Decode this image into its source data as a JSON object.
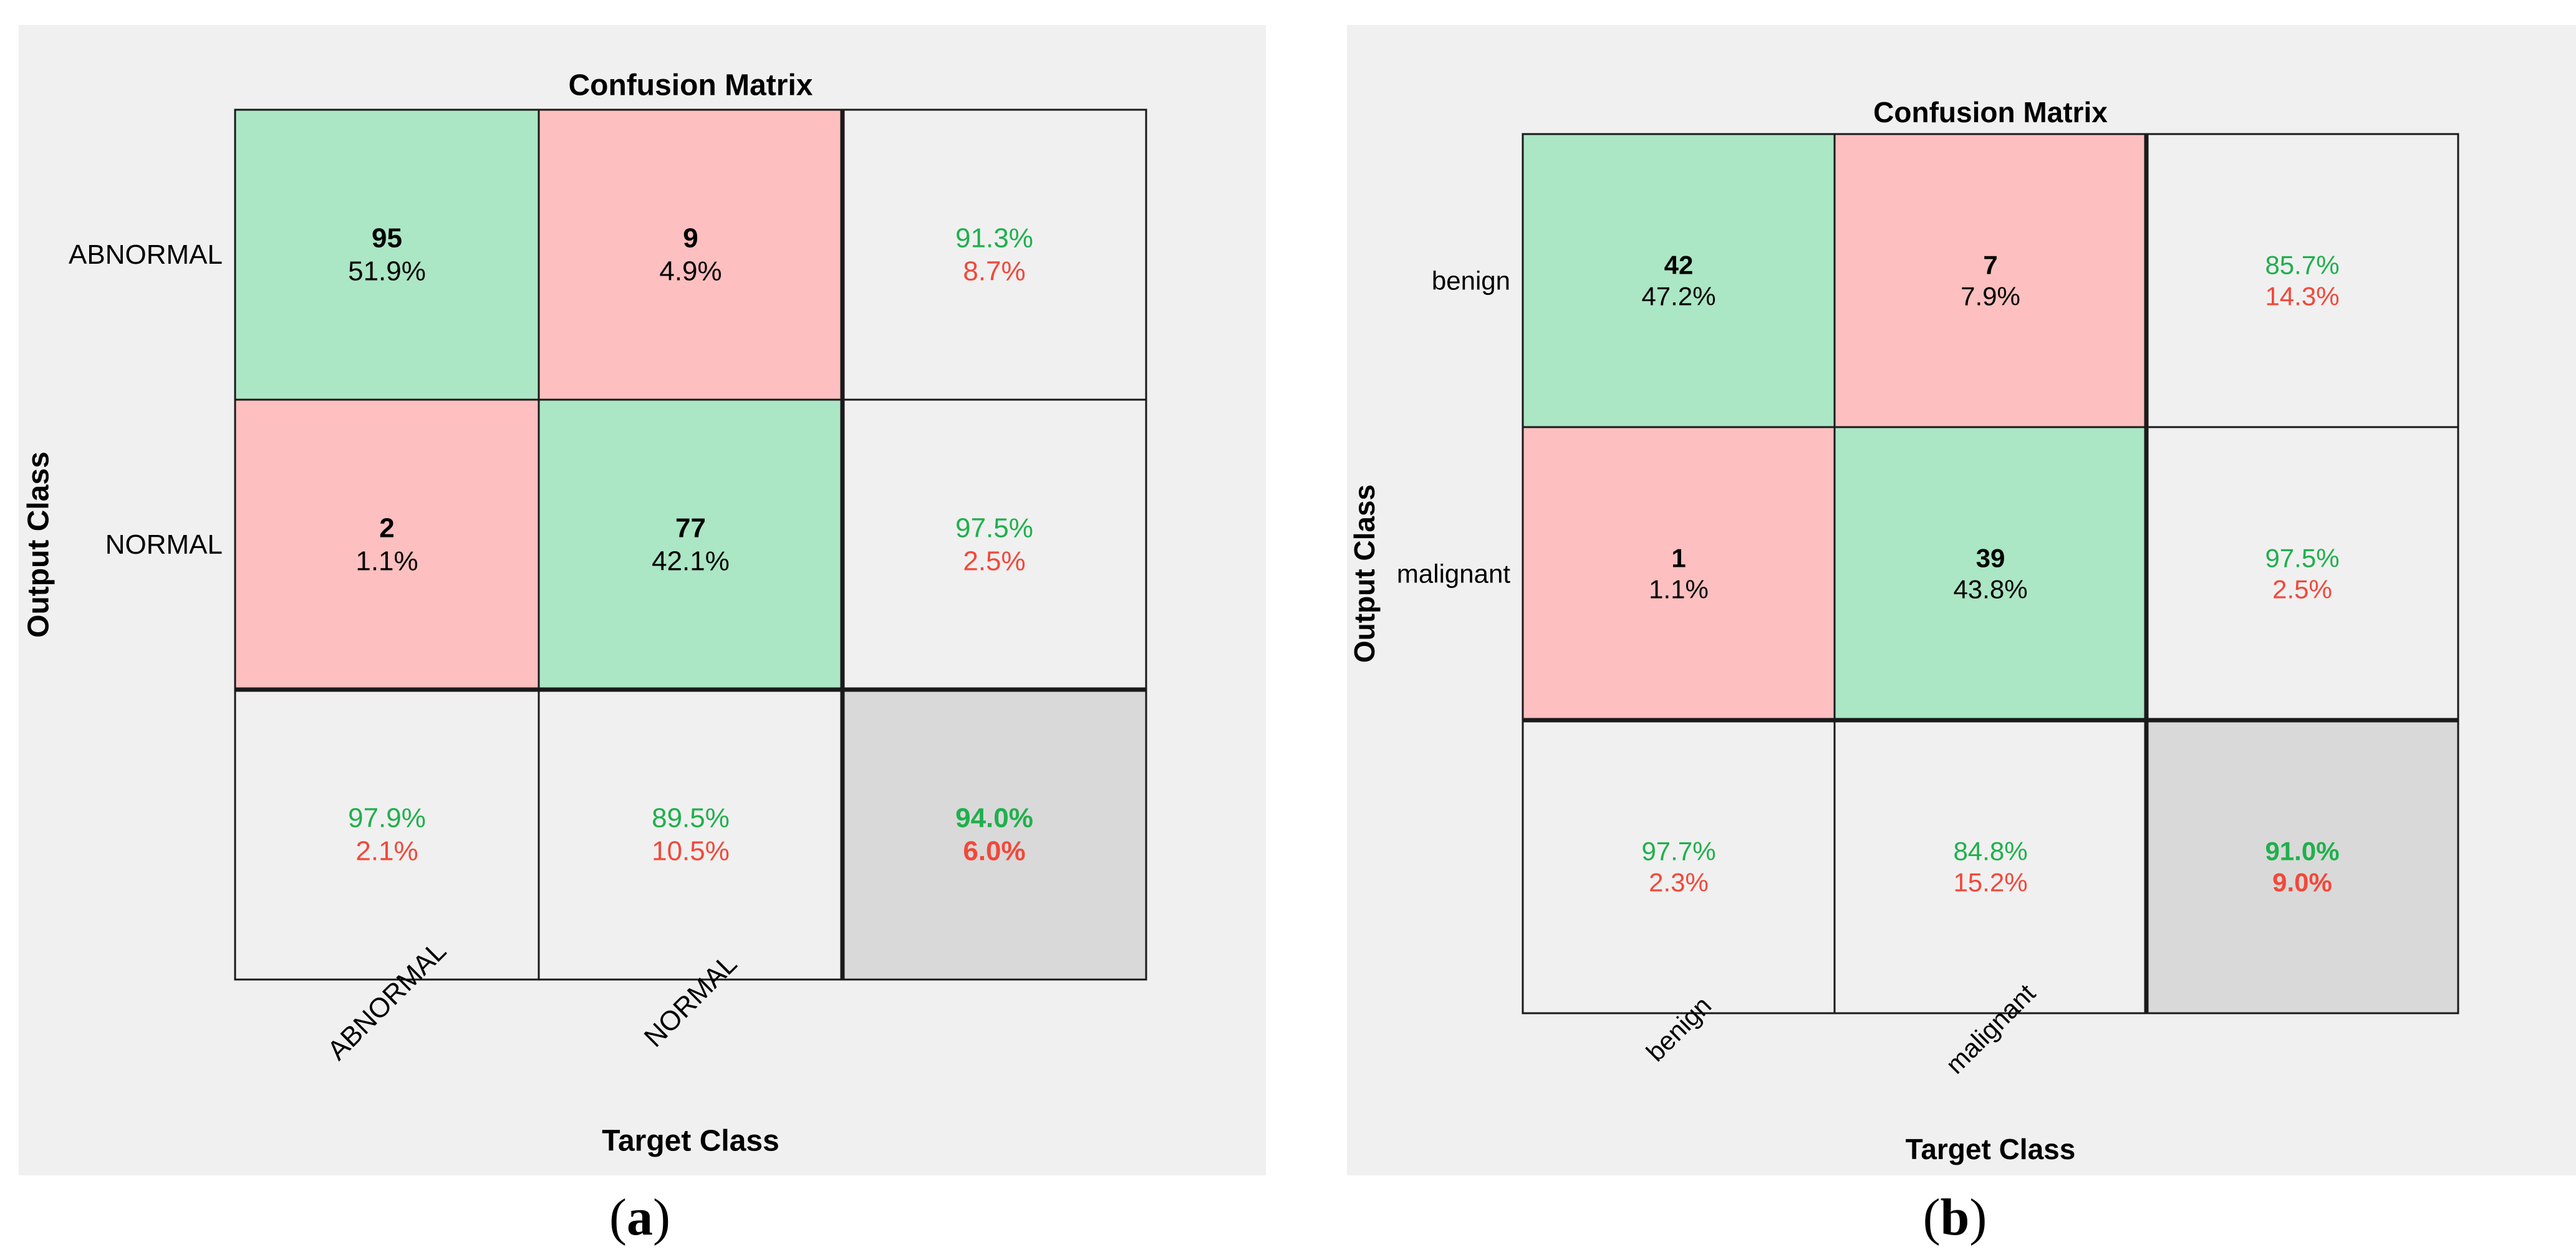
{
  "colors": {
    "panel_bg": "#f0f0f0",
    "correct_cell": "#abe6c5",
    "error_cell": "#fdbfbf",
    "summary_cell": "#f0f0f0",
    "overall_cell": "#d9d9d9",
    "grid_line": "#1a1a1a",
    "green_text": "#1fb04c",
    "red_text": "#f2483a",
    "dark_text": "#000000"
  },
  "chart_data": [
    {
      "type": "confusion-matrix",
      "title": "Confusion Matrix",
      "xlabel": "Target Class",
      "ylabel": "Output Class",
      "caption_prefix": "(",
      "caption_letter": "a",
      "caption_suffix": ")",
      "row_labels": [
        "ABNORMAL",
        "NORMAL"
      ],
      "col_labels": [
        "ABNORMAL",
        "NORMAL"
      ],
      "cells": [
        [
          {
            "count": "95",
            "pct": "51.9%"
          },
          {
            "count": "9",
            "pct": "4.9%"
          }
        ],
        [
          {
            "count": "2",
            "pct": "1.1%"
          },
          {
            "count": "77",
            "pct": "42.1%"
          }
        ]
      ],
      "row_summary": [
        {
          "correct": "91.3%",
          "error": "8.7%"
        },
        {
          "correct": "97.5%",
          "error": "2.5%"
        }
      ],
      "col_summary": [
        {
          "correct": "97.9%",
          "error": "2.1%"
        },
        {
          "correct": "89.5%",
          "error": "10.5%"
        }
      ],
      "overall": {
        "correct": "94.0%",
        "error": "6.0%"
      }
    },
    {
      "type": "confusion-matrix",
      "title": "Confusion Matrix",
      "xlabel": "Target Class",
      "ylabel": "Output Class",
      "caption_prefix": "(",
      "caption_letter": "b",
      "caption_suffix": ")",
      "row_labels": [
        "benign",
        "malignant"
      ],
      "col_labels": [
        "benign",
        "malignant"
      ],
      "cells": [
        [
          {
            "count": "42",
            "pct": "47.2%"
          },
          {
            "count": "7",
            "pct": "7.9%"
          }
        ],
        [
          {
            "count": "1",
            "pct": "1.1%"
          },
          {
            "count": "39",
            "pct": "43.8%"
          }
        ]
      ],
      "row_summary": [
        {
          "correct": "85.7%",
          "error": "14.3%"
        },
        {
          "correct": "97.5%",
          "error": "2.5%"
        }
      ],
      "col_summary": [
        {
          "correct": "97.7%",
          "error": "2.3%"
        },
        {
          "correct": "84.8%",
          "error": "15.2%"
        }
      ],
      "overall": {
        "correct": "91.0%",
        "error": "9.0%"
      }
    }
  ]
}
